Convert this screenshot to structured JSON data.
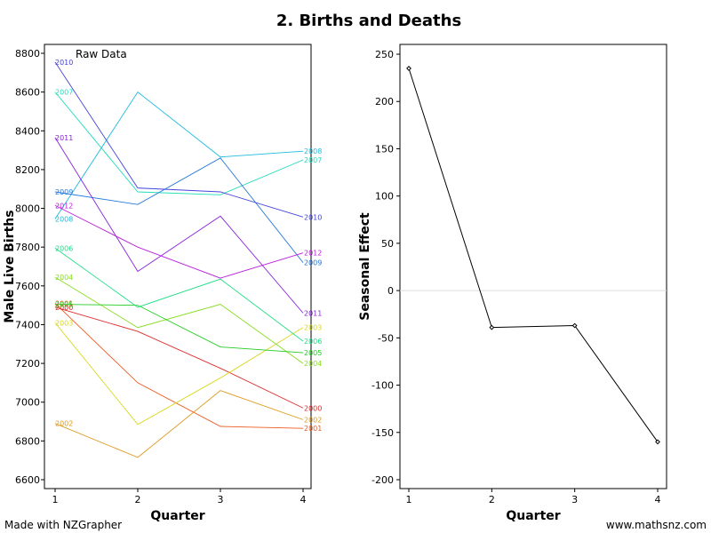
{
  "title": "2. Births and Deaths",
  "footer": {
    "left": "Made with NZGrapher",
    "right": "www.mathsnz.com"
  },
  "chart_data": [
    {
      "type": "line",
      "legend": "Raw Data",
      "xlabel": "Quarter",
      "ylabel": "Male Live Births",
      "x": [
        1,
        2,
        3,
        4
      ],
      "xlim": [
        1,
        4
      ],
      "ylim": [
        6600,
        8800
      ],
      "yticks": [
        6600,
        6800,
        7000,
        7200,
        7400,
        7600,
        7800,
        8000,
        8200,
        8400,
        8600,
        8800
      ],
      "series": [
        {
          "name": "2000",
          "color": "#dd2b2b",
          "values": [
            7490,
            7365,
            7175,
            6970
          ]
        },
        {
          "name": "2001",
          "color": "#ee5a20",
          "values": [
            7510,
            7100,
            6875,
            6865
          ]
        },
        {
          "name": "2002",
          "color": "#dd9a20",
          "values": [
            6890,
            6715,
            7060,
            6910
          ]
        },
        {
          "name": "2003",
          "color": "#d8d820",
          "values": [
            7410,
            6885,
            7125,
            7385
          ]
        },
        {
          "name": "2004",
          "color": "#88dd22",
          "values": [
            7645,
            7385,
            7505,
            7200
          ]
        },
        {
          "name": "2005",
          "color": "#22cc22",
          "values": [
            7505,
            7500,
            7285,
            7255
          ]
        },
        {
          "name": "2006",
          "color": "#22dd88",
          "values": [
            7795,
            7490,
            7635,
            7315
          ]
        },
        {
          "name": "2007",
          "color": "#22ddbb",
          "values": [
            8600,
            8085,
            8070,
            8250
          ]
        },
        {
          "name": "2008",
          "color": "#22bbdd",
          "values": [
            7945,
            8600,
            8265,
            8295
          ]
        },
        {
          "name": "2009",
          "color": "#2277dd",
          "values": [
            8085,
            8020,
            8260,
            7720
          ]
        },
        {
          "name": "2010",
          "color": "#4444dd",
          "values": [
            8755,
            8105,
            8085,
            7955
          ]
        },
        {
          "name": "2011",
          "color": "#8822dd",
          "values": [
            8365,
            7675,
            7960,
            7460
          ]
        },
        {
          "name": "2012",
          "color": "#bb22dd",
          "values": [
            8015,
            7800,
            7640,
            7770
          ]
        }
      ]
    },
    {
      "type": "line",
      "xlabel": "Quarter",
      "ylabel": "Seasonal Effect",
      "x": [
        1,
        2,
        3,
        4
      ],
      "xlim": [
        1,
        4
      ],
      "ylim": [
        -200,
        250
      ],
      "yticks": [
        -200,
        -150,
        -100,
        -50,
        0,
        50,
        100,
        150,
        200,
        250
      ],
      "zero_line": true,
      "series": [
        {
          "color": "#000000",
          "values": [
            235,
            -39,
            -37,
            -160
          ]
        }
      ]
    }
  ]
}
